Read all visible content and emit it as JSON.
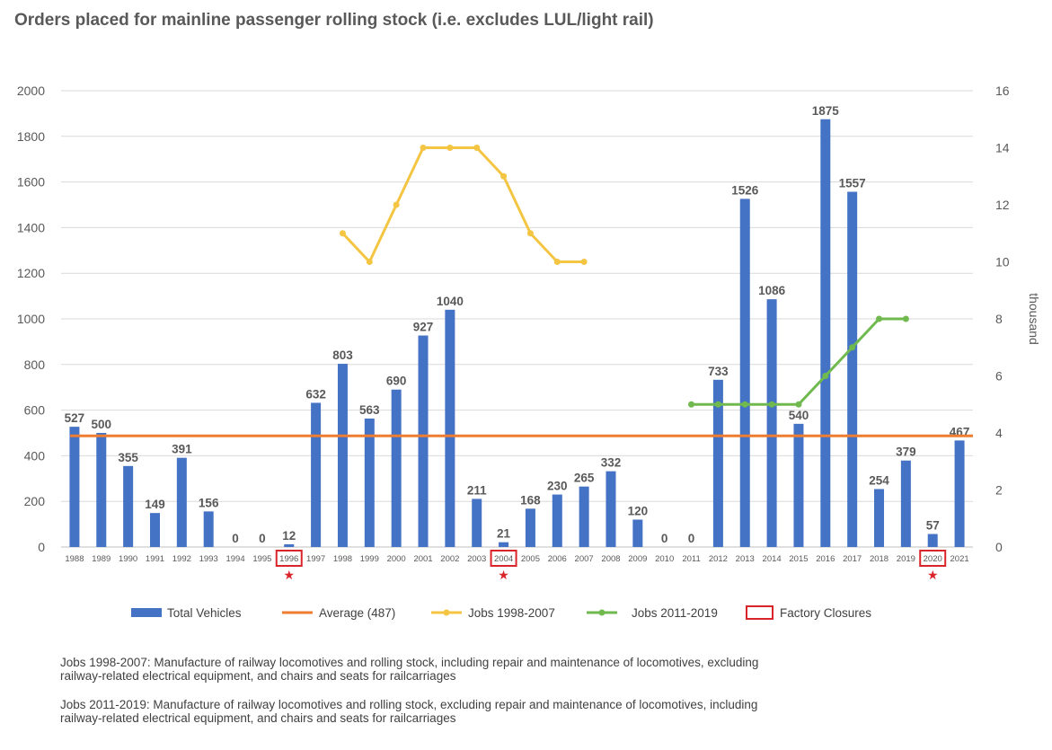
{
  "title": "Orders placed for mainline passenger rolling stock (i.e. excludes LUL/light rail)",
  "chart_data": {
    "type": "bar",
    "title": "Orders placed for mainline passenger rolling stock (i.e. excludes LUL/light rail)",
    "categories": [
      "1988",
      "1989",
      "1990",
      "1991",
      "1992",
      "1993",
      "1994",
      "1995",
      "1996",
      "1997",
      "1998",
      "1999",
      "2000",
      "2001",
      "2002",
      "2003",
      "2004",
      "2005",
      "2006",
      "2007",
      "2008",
      "2009",
      "2010",
      "2011",
      "2012",
      "2013",
      "2014",
      "2015",
      "2016",
      "2017",
      "2018",
      "2019",
      "2020",
      "2021"
    ],
    "left_axis": {
      "ylim": [
        0,
        2000
      ],
      "ticks": [
        "0",
        "200",
        "400",
        "600",
        "800",
        "1000",
        "1200",
        "1400",
        "1600",
        "1800",
        "2000"
      ]
    },
    "right_axis": {
      "ylim": [
        0,
        16
      ],
      "ticks": [
        "0",
        "2",
        "4",
        "6",
        "8",
        "10",
        "12",
        "14",
        "16"
      ],
      "label": "thousand"
    },
    "grid": true,
    "legend_position": "bottom",
    "series": [
      {
        "name": "Total Vehicles",
        "type": "bar",
        "axis": "left",
        "color": "#4472C4",
        "values": [
          527,
          500,
          355,
          149,
          391,
          156,
          0,
          0,
          12,
          632,
          803,
          563,
          690,
          927,
          1040,
          211,
          21,
          168,
          230,
          265,
          332,
          120,
          0,
          0,
          733,
          1526,
          1086,
          540,
          1875,
          1557,
          254,
          379,
          57,
          467
        ],
        "labels": [
          "527",
          "500",
          "355",
          "149",
          "391",
          "156",
          "0",
          "0",
          "12",
          "632",
          "803",
          "563",
          "690",
          "927",
          "1040",
          "211",
          "21",
          "168",
          "230",
          "265",
          "332",
          "120",
          "0",
          "0",
          "733",
          "1526",
          "1086",
          "540",
          "1875",
          "1557",
          "254",
          "379",
          "57",
          "467"
        ]
      },
      {
        "name": "Average (487)",
        "type": "line",
        "axis": "left",
        "color": "#ED7D31",
        "value": 487
      },
      {
        "name": "Jobs 1998-2007",
        "type": "line",
        "axis": "right",
        "color": "#F4C542",
        "points": [
          [
            "1998",
            11
          ],
          [
            "1999",
            10
          ],
          [
            "2000",
            12
          ],
          [
            "2001",
            14
          ],
          [
            "2002",
            14
          ],
          [
            "2003",
            14
          ],
          [
            "2004",
            13
          ],
          [
            "2005",
            11
          ],
          [
            "2006",
            10
          ],
          [
            "2007",
            10
          ]
        ]
      },
      {
        "name": "Jobs 2011-2019",
        "type": "line",
        "axis": "right",
        "color": "#70B94E",
        "points": [
          [
            "2011",
            5
          ],
          [
            "2012",
            5
          ],
          [
            "2013",
            5
          ],
          [
            "2014",
            5
          ],
          [
            "2015",
            5
          ],
          [
            "2016",
            6
          ],
          [
            "2017",
            7
          ],
          [
            "2018",
            8
          ],
          [
            "2019",
            8
          ]
        ]
      }
    ],
    "factory_closures": {
      "label": "Factory Closures",
      "color": "#D9252A",
      "years": [
        "1996",
        "2004",
        "2020"
      ],
      "marker": "★"
    }
  },
  "notes": [
    "Jobs 1998-2007: Manufacture of railway locomotives and rolling stock, including repair and maintenance of locomotives, excluding railway-related electrical equipment, and chairs and seats for railcarriages",
    "Jobs 2011-2019: Manufacture of railway locomotives and rolling stock, excluding repair and maintenance of locomotives, including railway-related electrical equipment, and chairs and seats for railcarriages"
  ]
}
